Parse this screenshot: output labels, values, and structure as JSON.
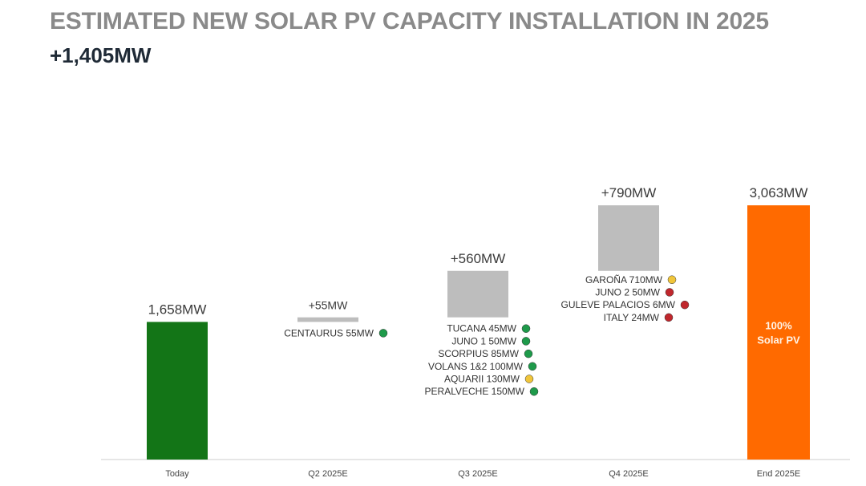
{
  "title": "ESTIMATED NEW SOLAR PV CAPACITY INSTALLATION IN 2025",
  "subtitle": "+1,405MW",
  "colors": {
    "today_bar": "#137517",
    "increment_bar": "#bdbdbd",
    "end_bar": "#ff6a00",
    "axis": "#d6d6d6",
    "status_green": "#1e9a4a",
    "status_yellow": "#f0c53a",
    "status_red": "#c0272d"
  },
  "chart_data": {
    "type": "bar",
    "subtype": "waterfall",
    "categories": [
      "Today",
      "Q2 2025E",
      "Q3 2025E",
      "Q4 2025E",
      "End 2025E"
    ],
    "values": [
      1658,
      55,
      560,
      790,
      3063
    ],
    "bar_kinds": [
      "total",
      "increment",
      "increment",
      "increment",
      "total"
    ],
    "value_labels": [
      "1,658MW",
      "+55MW",
      "+560MW",
      "+790MW",
      "3,063MW"
    ],
    "ylim": [
      0,
      3063
    ],
    "end_bar_label": [
      "100%",
      "Solar PV"
    ],
    "projects": [
      [],
      [
        {
          "name": "CENTAURUS 55MW",
          "status": "green"
        }
      ],
      [
        {
          "name": "TUCANA 45MW",
          "status": "green"
        },
        {
          "name": "JUNO 1 50MW",
          "status": "green"
        },
        {
          "name": "SCORPIUS 85MW",
          "status": "green"
        },
        {
          "name": "VOLANS 1&2 100MW",
          "status": "green"
        },
        {
          "name": "AQUARII 130MW",
          "status": "yellow"
        },
        {
          "name": "PERALVECHE 150MW",
          "status": "green"
        }
      ],
      [
        {
          "name": "GAROÑA 710MW",
          "status": "yellow"
        },
        {
          "name": "JUNO 2 50MW",
          "status": "red"
        },
        {
          "name": "GULEVE PALACIOS 6MW",
          "status": "red"
        },
        {
          "name": "ITALY 24MW",
          "status": "red"
        }
      ],
      []
    ]
  }
}
